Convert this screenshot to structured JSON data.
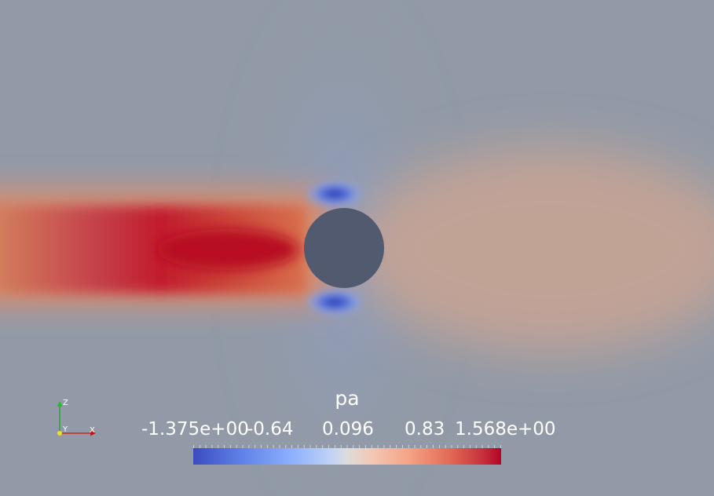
{
  "scalar_bar": {
    "title": "pa",
    "ticks": [
      "-1.375e+00",
      "-0.64",
      "0.096",
      "0.83",
      "1.568e+00"
    ],
    "range": [
      -1.375,
      1.568
    ],
    "colormap": "Cool to Warm"
  },
  "axes": {
    "z_label": "Z",
    "y_label": "Y",
    "x_label": "X"
  },
  "colors": {
    "background": "#929aa7",
    "obstacle": "#525a6f",
    "high_pressure": "#b40426",
    "low_pressure": "#3b4cc0",
    "axis_x": "#d01010",
    "axis_y": "#f0e020",
    "axis_z": "#20c020"
  }
}
